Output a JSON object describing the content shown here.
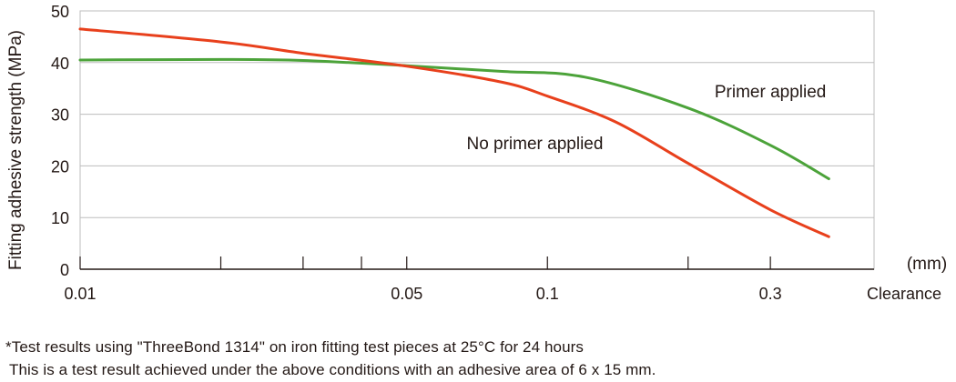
{
  "chart_data": {
    "type": "line",
    "title": "",
    "xlabel": "Clearance",
    "x_unit": "(mm)",
    "ylabel": "Fitting adhesive strength (MPa)",
    "x_scale": "log",
    "xlim": [
      0.01,
      0.5
    ],
    "ylim": [
      0,
      50
    ],
    "x_ticks": [
      0.01,
      0.02,
      0.03,
      0.04,
      0.05,
      0.1,
      0.2,
      0.3
    ],
    "x_tick_labels": [
      {
        "value": 0.01,
        "label": "0.01"
      },
      {
        "value": 0.05,
        "label": "0.05"
      },
      {
        "value": 0.1,
        "label": "0.1"
      },
      {
        "value": 0.3,
        "label": "0.3"
      }
    ],
    "y_ticks": [
      0,
      10,
      20,
      30,
      40,
      50
    ],
    "grid": "horizontal",
    "colors": {
      "grid": "#bdbdbd",
      "axis": "#231815",
      "text": "#231815"
    },
    "series": [
      {
        "name": "Primer applied",
        "color": "#4ca33a",
        "x": [
          0.01,
          0.02,
          0.03,
          0.05,
          0.08,
          0.12,
          0.2,
          0.3,
          0.4
        ],
        "y": [
          40.5,
          40.6,
          40.4,
          39.4,
          38.3,
          37.2,
          31.2,
          24.0,
          17.5
        ]
      },
      {
        "name": "No primer applied",
        "color": "#e8401c",
        "x": [
          0.01,
          0.02,
          0.03,
          0.05,
          0.08,
          0.1,
          0.14,
          0.2,
          0.3,
          0.4
        ],
        "y": [
          46.5,
          44.0,
          41.8,
          39.3,
          36.2,
          33.5,
          28.5,
          20.5,
          11.5,
          6.3
        ]
      }
    ],
    "annotations": [
      {
        "text": "Primer applied",
        "x": 0.3,
        "y": 34.5
      },
      {
        "text": "No primer applied",
        "x": 0.094,
        "y": 24.5
      }
    ]
  },
  "notes": [
    "*Test results using \"ThreeBond 1314\" on iron fitting test pieces at 25°C for 24 hours",
    "This is a test result achieved under the above conditions with an adhesive area of 6 x 15 mm."
  ]
}
